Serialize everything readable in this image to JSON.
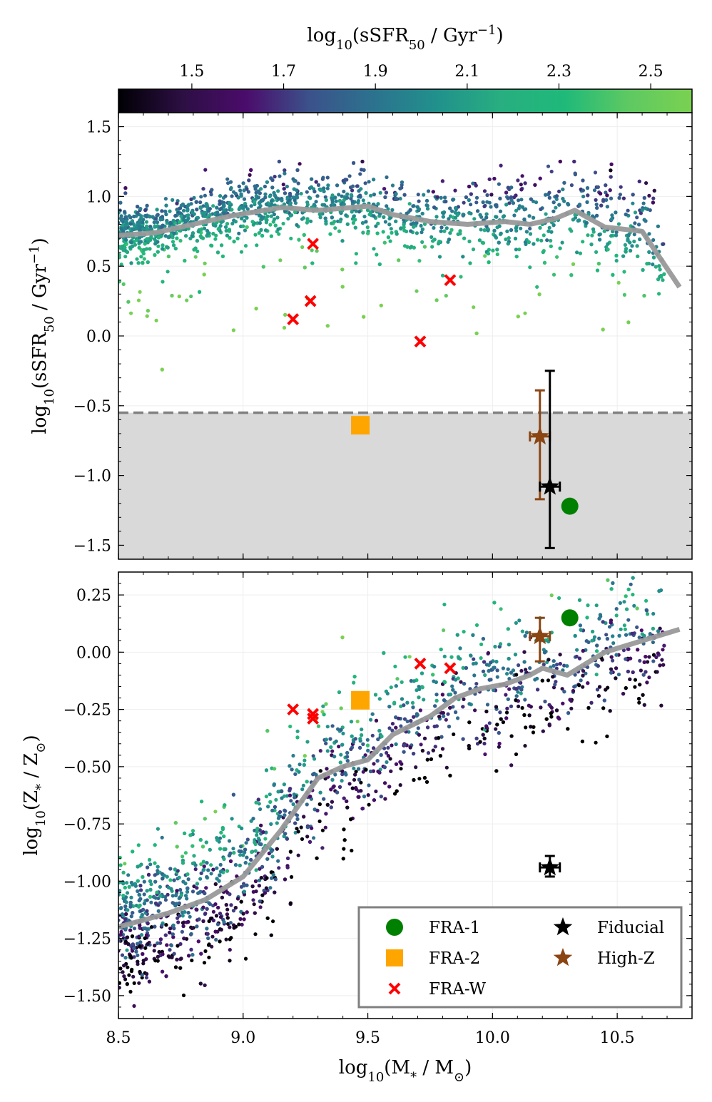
{
  "colorbar": {
    "label_prefix": "log",
    "label_sub": "10",
    "label_main": "(sSFR",
    "label_main_sub": "50",
    "label_unit": " / Gyr",
    "label_unit_sup": "−1",
    "label_close": ")",
    "range": [
      1.34,
      2.59
    ],
    "ticks": [
      "1.5",
      "1.7",
      "1.9",
      "2.1",
      "2.3",
      "2.5"
    ],
    "tick_values": [
      1.5,
      1.7,
      1.9,
      2.1,
      2.3,
      2.5
    ],
    "colormap_stops": [
      "#000004",
      "#2c0f43",
      "#4b0c6b",
      "#3b528b",
      "#2c728e",
      "#21918c",
      "#28ae80",
      "#1fb97a",
      "#5ec962",
      "#7ad151"
    ]
  },
  "chart_data": [
    {
      "type": "scatter",
      "panel": "top",
      "ylabel": {
        "prefix": "log",
        "sub": "10",
        "main": "(sSFR",
        "main_sub": "50",
        "unit": " / Gyr",
        "unit_sup": "−1",
        "close": ")"
      },
      "xlim": [
        8.5,
        10.8
      ],
      "ylim": [
        -1.6,
        1.6
      ],
      "yticks": [
        "−1.5",
        "−1.0",
        "−0.5",
        "0.0",
        "0.5",
        "1.0",
        "1.5"
      ],
      "ytick_values": [
        -1.5,
        -1.0,
        -0.5,
        0.0,
        0.5,
        1.0,
        1.5
      ],
      "threshold": -0.55,
      "shaded_below_threshold": true,
      "median_line": {
        "x": [
          8.5,
          8.65,
          8.8,
          8.95,
          9.15,
          9.3,
          9.5,
          9.6,
          9.75,
          9.9,
          10.05,
          10.15,
          10.25,
          10.33,
          10.45,
          10.6,
          10.75
        ],
        "y": [
          0.72,
          0.74,
          0.8,
          0.86,
          0.92,
          0.9,
          0.93,
          0.87,
          0.82,
          0.8,
          0.82,
          0.8,
          0.84,
          0.9,
          0.78,
          0.75,
          0.35
        ]
      },
      "background_density": {
        "x_center": 8.5,
        "description": "dense galaxy cloud"
      },
      "highlighted_points": {
        "FRA-1": {
          "x": 10.31,
          "y": -1.22
        },
        "FRA-2": {
          "x": 9.47,
          "y": -0.64
        },
        "FRA-W": {
          "x": [
            9.28,
            9.2,
            9.27,
            9.71,
            9.83
          ],
          "y": [
            0.66,
            0.12,
            0.25,
            -0.04,
            0.4
          ]
        },
        "Fiducial": {
          "x": 10.23,
          "y": -1.08,
          "xerr": 0.04,
          "yerr_low": 0.44,
          "yerr_high": 0.83
        },
        "High-Z": {
          "x": 10.19,
          "y": -0.72,
          "xerr": 0.04,
          "yerr_low": 0.45,
          "yerr_high": 0.33
        }
      }
    },
    {
      "type": "scatter",
      "panel": "bottom",
      "xlabel": {
        "prefix": "log",
        "sub": "10",
        "main": "(M",
        "main_sub": "*",
        "unit": " / M",
        "unit_sub": "⊙",
        "close": ")"
      },
      "ylabel": {
        "prefix": "log",
        "sub": "10",
        "main": "(Z",
        "main_sub": "*",
        "unit": " / Z",
        "unit_sub": "⊙",
        "close": ")"
      },
      "xlim": [
        8.5,
        10.8
      ],
      "ylim": [
        -1.6,
        0.35
      ],
      "xticks": [
        "8.5",
        "9.0",
        "9.5",
        "10.0",
        "10.5"
      ],
      "xtick_values": [
        8.5,
        9.0,
        9.5,
        10.0,
        10.5
      ],
      "yticks": [
        "−1.50",
        "−1.25",
        "−1.00",
        "−0.75",
        "−0.50",
        "−0.25",
        "0.00",
        "0.25"
      ],
      "ytick_values": [
        -1.5,
        -1.25,
        -1.0,
        -0.75,
        -0.5,
        -0.25,
        0.0,
        0.25
      ],
      "median_line": {
        "x": [
          8.5,
          8.7,
          8.85,
          9.0,
          9.15,
          9.3,
          9.4,
          9.5,
          9.6,
          9.75,
          9.85,
          9.95,
          10.05,
          10.15,
          10.2,
          10.3,
          10.45,
          10.6,
          10.75
        ],
        "y": [
          -1.2,
          -1.14,
          -1.08,
          -0.98,
          -0.78,
          -0.55,
          -0.5,
          -0.47,
          -0.36,
          -0.28,
          -0.2,
          -0.16,
          -0.14,
          -0.1,
          -0.07,
          -0.1,
          0.0,
          0.05,
          0.1
        ]
      },
      "highlighted_points": {
        "FRA-1": {
          "x": 10.31,
          "y": 0.15
        },
        "FRA-2": {
          "x": 9.47,
          "y": -0.21
        },
        "FRA-W": {
          "x": [
            9.2,
            9.28,
            9.28,
            9.71,
            9.83
          ],
          "y": [
            -0.25,
            -0.27,
            -0.29,
            -0.05,
            -0.07
          ]
        },
        "Fiducial": {
          "x": 10.23,
          "y": -0.94,
          "xerr": 0.04,
          "yerr_low": 0.04,
          "yerr_high": 0.05
        },
        "High-Z": {
          "x": 10.19,
          "y": 0.07,
          "xerr": 0.04,
          "yerr_low": 0.11,
          "yerr_high": 0.08
        }
      },
      "legend": {
        "placement": "lower-right",
        "entries": [
          "FRA-1",
          "FRA-2",
          "FRA-W",
          "Fiducial",
          "High-Z"
        ]
      }
    }
  ],
  "colors": {
    "fra1": "#008000",
    "fra2": "#ffa500",
    "fraw": "#ff0000",
    "fiducial": "#000000",
    "highz": "#8b4513",
    "median": "#999999",
    "shade": "#d9d9d9",
    "threshold": "#808080"
  }
}
